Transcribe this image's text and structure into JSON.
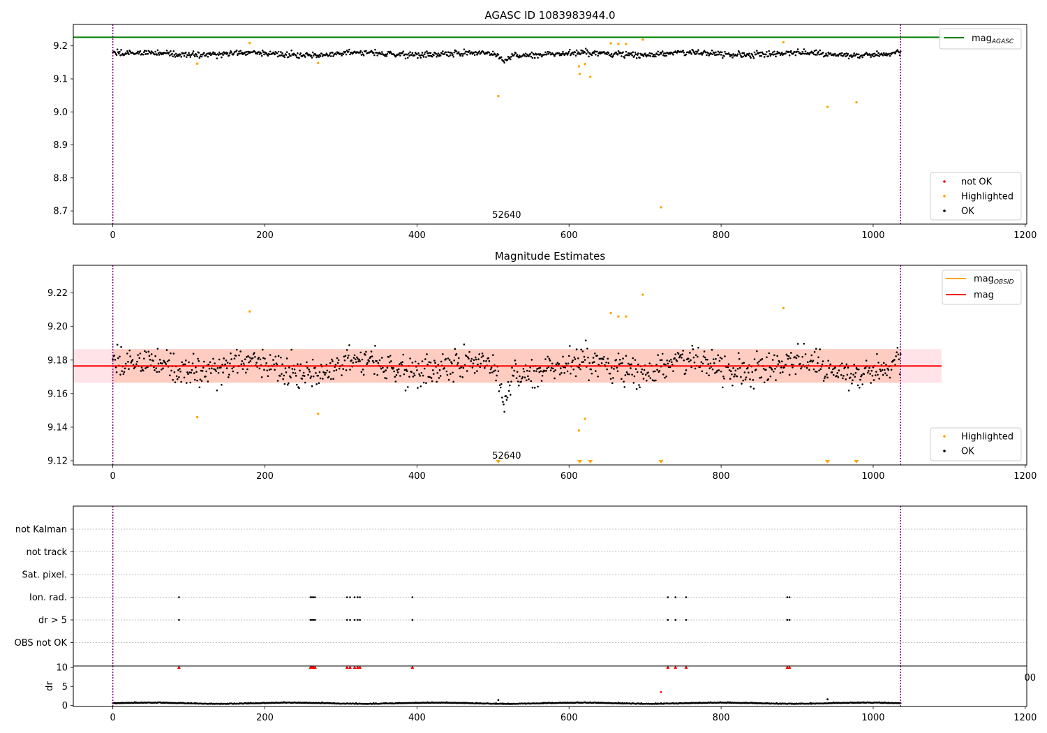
{
  "chart_data": [
    {
      "type": "scatter",
      "title": "AGASC ID 1083983944.0",
      "annotation": "52640",
      "xlim": [
        -52,
        1202
      ],
      "ylim": [
        8.66,
        9.265
      ],
      "x_ticks": [
        0,
        200,
        400,
        600,
        800,
        1000,
        1200
      ],
      "y_ticks": [
        8.7,
        8.8,
        8.9,
        9.0,
        9.1,
        9.2
      ],
      "y_tick_labels": [
        "8.7",
        "8.8",
        "8.9",
        "9.0",
        "9.1",
        "9.2"
      ],
      "obs_boundaries": [
        0,
        1036
      ],
      "reference_lines": [
        {
          "name": "mag_AGASC",
          "label_main": "mag",
          "label_sub": "AGASC",
          "y": 9.226,
          "x_range": [
            -52,
            1090
          ],
          "color": "#008000"
        }
      ],
      "legend_lines": [
        {
          "label_main": "mag",
          "label_sub": "AGASC",
          "color": "#008000"
        }
      ],
      "legend_points": [
        {
          "label": "not OK",
          "color": "#ff0000"
        },
        {
          "label": "Highlighted",
          "color": "#ffa500"
        },
        {
          "label": "OK",
          "color": "#000000"
        }
      ],
      "ok_points": {
        "color": "#000000",
        "count": 1036,
        "x_range": [
          0,
          1036
        ],
        "baseline": 9.176,
        "spread": 0.011,
        "dips": [
          {
            "x": 515,
            "depth": 0.02
          }
        ]
      },
      "series": [
        {
          "name": "Highlighted",
          "color": "#ffa500",
          "x": [
            111,
            180,
            270,
            507,
            613,
            614,
            621,
            628,
            655,
            665,
            675,
            697,
            721,
            882,
            940,
            978
          ],
          "y": [
            9.146,
            9.209,
            9.148,
            9.048,
            9.138,
            9.115,
            9.145,
            9.106,
            9.208,
            9.206,
            9.206,
            9.219,
            8.711,
            9.211,
            9.015,
            9.029
          ]
        },
        {
          "name": "not OK",
          "color": "#ff0000",
          "x": [],
          "y": []
        }
      ]
    },
    {
      "type": "scatter",
      "title": "Magnitude Estimates",
      "annotation": "52640",
      "xlim": [
        -52,
        1202
      ],
      "ylim": [
        9.1175,
        9.2365
      ],
      "x_ticks": [
        0,
        200,
        400,
        600,
        800,
        1000,
        1200
      ],
      "y_ticks": [
        9.12,
        9.14,
        9.16,
        9.18,
        9.2,
        9.22
      ],
      "y_tick_labels": [
        "9.12",
        "9.14",
        "9.16",
        "9.18",
        "9.20",
        "9.22"
      ],
      "obs_boundaries": [
        0,
        1036
      ],
      "reference_lines": [
        {
          "name": "mag",
          "label_main": "mag",
          "label_sub": "",
          "y": 9.1765,
          "x_range": [
            -52,
            1090
          ],
          "color": "#ff0000"
        }
      ],
      "bands": [
        {
          "y_range": [
            9.1665,
            9.1865
          ],
          "x_range": [
            -52,
            1090
          ],
          "color": "#ffc0cb",
          "opacity": 0.45
        },
        {
          "y_range": [
            9.1665,
            9.1865
          ],
          "x_range": [
            0,
            1036
          ],
          "color": "#ffa07a",
          "opacity": 0.35
        }
      ],
      "legend_lines": [
        {
          "label_main": "mag",
          "label_sub": "OBSID",
          "color": "#ffa500"
        },
        {
          "label_main": "mag",
          "label_sub": "",
          "color": "#ff0000"
        }
      ],
      "legend_points": [
        {
          "label": "Highlighted",
          "color": "#ffa500"
        },
        {
          "label": "OK",
          "color": "#000000"
        }
      ],
      "ok_points": {
        "color": "#000000",
        "count": 1036,
        "x_range": [
          0,
          1036
        ],
        "baseline": 9.176,
        "spread": 0.011,
        "dips": [
          {
            "x": 515,
            "depth": 0.02
          }
        ]
      },
      "series": [
        {
          "name": "Highlighted",
          "color": "#ffa500",
          "x": [
            111,
            180,
            270,
            613,
            621,
            655,
            665,
            675,
            697,
            882
          ],
          "y": [
            9.146,
            9.209,
            9.148,
            9.138,
            9.145,
            9.208,
            9.206,
            9.206,
            9.219,
            9.211
          ]
        }
      ],
      "offscale_markers": {
        "color": "#ffa500",
        "x": [
          507,
          614,
          628,
          721,
          940,
          978
        ]
      }
    },
    {
      "type": "scatter",
      "title": "",
      "xlim": [
        -52,
        1202
      ],
      "categories": [
        "not Kalman",
        "not track",
        "Sat. pixel.",
        "Ion. rad.",
        "dr > 5",
        "OBS not OK"
      ],
      "obs_boundaries": [
        0,
        1036
      ],
      "flag_points": {
        "Ion. rad.": [
          87,
          260,
          262,
          264,
          266,
          308,
          312,
          318,
          322,
          325,
          394,
          730,
          740,
          754,
          887,
          890
        ],
        "dr > 5": [
          87,
          260,
          262,
          264,
          266,
          308,
          312,
          318,
          322,
          325,
          394,
          730,
          740,
          754,
          887,
          890
        ]
      }
    },
    {
      "type": "scatter",
      "title": "",
      "ylabel": "dr",
      "xlim": [
        -52,
        1202
      ],
      "ylim": [
        -0.3,
        10.4
      ],
      "x_ticks": [
        0,
        200,
        400,
        600,
        800,
        1000,
        1200
      ],
      "y_ticks": [
        0,
        5,
        10
      ],
      "y_tick_labels": [
        "0",
        "5",
        "10"
      ],
      "stray_tick_label": "00",
      "obs_boundaries": [
        0,
        1036
      ],
      "ok_points": {
        "color": "#000000",
        "count": 1036,
        "x_range": [
          0,
          1036
        ],
        "baseline": 0.5,
        "spread": 0.25
      },
      "series": [
        {
          "name": "dr > 5 (capped)",
          "color": "#ff0000",
          "marker": "triangle",
          "x": [
            87,
            260,
            262,
            264,
            266,
            308,
            312,
            318,
            322,
            325,
            394,
            730,
            740,
            754,
            887,
            890
          ],
          "y": [
            10,
            10,
            10,
            10,
            10,
            10,
            10,
            10,
            10,
            10,
            10,
            10,
            10,
            10,
            10,
            10
          ]
        },
        {
          "name": "outliers",
          "color": "#ff0000",
          "x": [
            721
          ],
          "y": [
            3.5
          ]
        },
        {
          "name": "outliers-black",
          "color": "#000000",
          "x": [
            507,
            940
          ],
          "y": [
            1.4,
            1.6
          ]
        }
      ]
    }
  ]
}
